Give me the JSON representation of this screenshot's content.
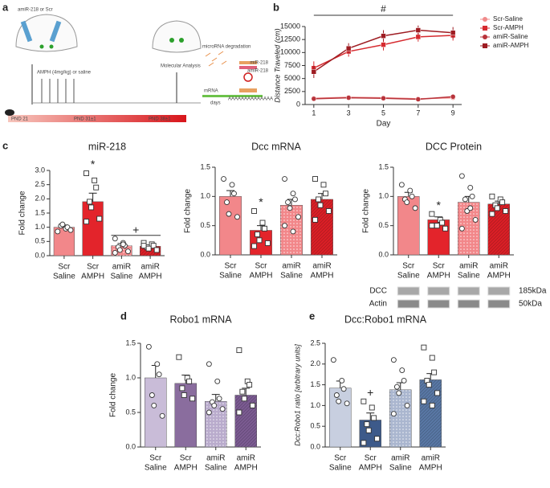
{
  "panel_labels": {
    "a": "a",
    "b": "b",
    "c": "c",
    "d": "d",
    "e": "e"
  },
  "diagram": {
    "injection": "amiR-218 or Scr",
    "treatment": "AMPH (4mg/kg) or saline",
    "analysis": "Molecular Analysis",
    "days": "days",
    "pnd": [
      "PND 21",
      "PND 31±1",
      "PND 38±1"
    ],
    "degradation": "microRNA degradation",
    "mir": "miR-218",
    "amir": "amiR-218",
    "mrna": "mRNA",
    "polya": "AAAAAAAAAAAAAA"
  },
  "chart_data": [
    {
      "type": "line",
      "xlabel": "Day",
      "ylabel": "Distance Traveled (cm)",
      "x": [
        1,
        3,
        5,
        7,
        9
      ],
      "xlim": [
        0.5,
        9.5
      ],
      "xticks": [
        1,
        3,
        5,
        7,
        9
      ],
      "ylim": [
        0,
        15000
      ],
      "yticks": [
        0,
        2500,
        5000,
        7500,
        10000,
        12500,
        15000
      ],
      "annotation": {
        "text": "#",
        "span": [
          1,
          9
        ]
      },
      "series": [
        {
          "name": "Scr-Saline",
          "color": "#f08a8a",
          "marker": "circle",
          "values": [
            1200,
            1400,
            1300,
            1100,
            1300
          ],
          "errors": [
            300,
            250,
            250,
            250,
            300
          ]
        },
        {
          "name": "Scr-AMPH",
          "color": "#d62a2f",
          "marker": "square",
          "values": [
            7000,
            10200,
            11500,
            13000,
            13300
          ],
          "errors": [
            1300,
            1000,
            1100,
            900,
            1000
          ]
        },
        {
          "name": "amiR-Saline",
          "color": "#b8333a",
          "marker": "circle",
          "values": [
            1100,
            1300,
            1200,
            1000,
            1500
          ],
          "errors": [
            250,
            250,
            250,
            250,
            350
          ]
        },
        {
          "name": "amiR-AMPH",
          "color": "#9e1c22",
          "marker": "square",
          "values": [
            6300,
            10800,
            13200,
            14300,
            13800
          ],
          "errors": [
            1200,
            1000,
            1100,
            900,
            1100
          ]
        }
      ]
    },
    {
      "type": "bar",
      "title": "miR-218",
      "ylabel": "Fold change",
      "categories": [
        [
          "Scr",
          "Saline"
        ],
        [
          "Scr",
          "AMPH"
        ],
        [
          "amiR",
          "Saline"
        ],
        [
          "amiR",
          "AMPH"
        ]
      ],
      "ylim": [
        0,
        3
      ],
      "yticks": [
        {
          "value": 0,
          "label": "0.0"
        },
        0.5,
        {
          "value": 1,
          "label": "1.0"
        },
        1.5,
        {
          "value": 2,
          "label": "2.0"
        },
        2.5,
        {
          "value": 3,
          "label": "3.0"
        }
      ],
      "colors": [
        "#f2878a",
        "#e3242b",
        "#f2878a",
        "#d81f26"
      ],
      "patterns": [
        null,
        null,
        "dots",
        "hatch"
      ],
      "markers": [
        "circle",
        "square",
        "circle",
        "square"
      ],
      "values": [
        1.0,
        1.9,
        0.35,
        0.33
      ],
      "errors": [
        0.08,
        0.3,
        0.08,
        0.05
      ],
      "points": [
        [
          0.85,
          0.95,
          1.0,
          1.05,
          1.1,
          0.9
        ],
        [
          2.9,
          2.65,
          2.4,
          1.9,
          1.7,
          1.3,
          1.2
        ],
        [
          0.6,
          0.45,
          0.35,
          0.3,
          0.2,
          0.15,
          0.1,
          0.4
        ],
        [
          0.45,
          0.4,
          0.35,
          0.3,
          0.25,
          0.2,
          0.35
        ]
      ],
      "annotations": [
        {
          "text": "*",
          "categories": [
            1
          ]
        },
        {
          "text": "+",
          "categories": [
            2,
            3
          ]
        }
      ]
    },
    {
      "type": "bar",
      "title": "Dcc mRNA",
      "ylabel": "Fold change",
      "categories": [
        [
          "Scr",
          "Saline"
        ],
        [
          "Scr",
          "AMPH"
        ],
        [
          "amiR",
          "Saline"
        ],
        [
          "amiR",
          "AMPH"
        ]
      ],
      "ylim": [
        0,
        1.5
      ],
      "yticks": [
        {
          "value": 0,
          "label": "0.0"
        },
        0.5,
        {
          "value": 1,
          "label": "1.0"
        },
        1.5
      ],
      "colors": [
        "#f2878a",
        "#e3242b",
        "#f2878a",
        "#d81f26"
      ],
      "patterns": [
        null,
        null,
        "dots",
        "hatch"
      ],
      "markers": [
        "circle",
        "square",
        "circle",
        "square"
      ],
      "values": [
        1.0,
        0.42,
        0.85,
        0.95
      ],
      "errors": [
        0.1,
        0.08,
        0.1,
        0.1
      ],
      "points": [
        [
          1.3,
          1.2,
          1.05,
          0.9,
          0.7,
          0.65
        ],
        [
          0.75,
          0.55,
          0.45,
          0.35,
          0.25,
          0.2,
          0.15
        ],
        [
          1.3,
          1.05,
          0.95,
          0.9,
          0.8,
          0.65,
          0.5,
          0.4
        ],
        [
          1.3,
          1.2,
          1.05,
          0.95,
          0.85,
          0.75,
          0.6
        ]
      ],
      "annotations": [
        {
          "text": "*",
          "categories": [
            1
          ]
        }
      ]
    },
    {
      "type": "bar",
      "title": "DCC Protein",
      "ylabel": "Fold change",
      "categories": [
        [
          "Scr",
          "Saline"
        ],
        [
          "Scr",
          "AMPH"
        ],
        [
          "amiR",
          "Saline"
        ],
        [
          "amiR",
          "AMPH"
        ]
      ],
      "ylim": [
        0,
        1.5
      ],
      "yticks": [
        {
          "value": 0,
          "label": "0.0"
        },
        0.5,
        {
          "value": 1,
          "label": "1.0"
        },
        1.5
      ],
      "colors": [
        "#f2878a",
        "#e3242b",
        "#f2878a",
        "#d81f26"
      ],
      "patterns": [
        null,
        null,
        "dots",
        "hatch"
      ],
      "markers": [
        "circle",
        "square",
        "circle",
        "square"
      ],
      "values": [
        1.0,
        0.6,
        0.9,
        0.87
      ],
      "errors": [
        0.07,
        0.05,
        0.1,
        0.05
      ],
      "points": [
        [
          1.2,
          1.1,
          1.0,
          0.95,
          0.9,
          0.8
        ],
        [
          0.7,
          0.6,
          0.55,
          0.5,
          0.5,
          0.45,
          0.5
        ],
        [
          1.35,
          1.15,
          1.0,
          0.95,
          0.75,
          0.6,
          0.45,
          0.8
        ],
        [
          1.0,
          0.95,
          0.9,
          0.85,
          0.8,
          0.75,
          0.7
        ]
      ],
      "annotations": [
        {
          "text": "*",
          "categories": [
            1
          ]
        }
      ],
      "blot": {
        "rows": [
          "DCC",
          "Actin"
        ],
        "sizes": [
          "185kDa",
          "50kDa"
        ]
      }
    },
    {
      "type": "bar",
      "title": "Robo1 mRNA",
      "ylabel": "Fold change",
      "categories": [
        [
          "Scr",
          "Saline"
        ],
        [
          "Scr",
          "AMPH"
        ],
        [
          "amiR",
          "Saline"
        ],
        [
          "amiR",
          "AMPH"
        ]
      ],
      "ylim": [
        0,
        1.5
      ],
      "yticks": [
        {
          "value": 0,
          "label": "0.0"
        },
        0.5,
        {
          "value": 1,
          "label": "1.0"
        },
        1.5
      ],
      "colors": [
        "#c9bcd8",
        "#8a6d9e",
        "#b9abcc",
        "#7a5a90"
      ],
      "patterns": [
        null,
        null,
        "dots",
        "hatch"
      ],
      "markers": [
        "circle",
        "square",
        "circle",
        "square"
      ],
      "values": [
        1.0,
        0.92,
        0.66,
        0.75
      ],
      "errors": [
        0.18,
        0.12,
        0.1,
        0.1
      ],
      "points": [
        [
          1.45,
          1.2,
          1.05,
          0.75,
          0.6,
          0.45
        ],
        [
          1.3,
          1.0,
          0.95,
          0.85,
          0.75,
          0.7
        ],
        [
          1.2,
          0.95,
          0.7,
          0.65,
          0.6,
          0.55,
          0.5
        ],
        [
          1.4,
          0.95,
          0.9,
          0.8,
          0.7,
          0.6,
          0.5
        ]
      ],
      "annotations": []
    },
    {
      "type": "bar",
      "title": "Dcc:Robo1 mRNA",
      "ylabel": "Dcc:Robo1 ratio [arbitrary units]",
      "categories": [
        [
          "Scr",
          "Saline"
        ],
        [
          "Scr",
          "AMPH"
        ],
        [
          "amiR",
          "Saline"
        ],
        [
          "amiR",
          "AMPH"
        ]
      ],
      "ylim": [
        0,
        2.5
      ],
      "yticks": [
        {
          "value": 0,
          "label": "0.0"
        },
        0.5,
        {
          "value": 1,
          "label": "1.0"
        },
        1.5,
        {
          "value": 2,
          "label": "2.0"
        },
        2.5
      ],
      "colors": [
        "#c8cfe0",
        "#3d5a8a",
        "#aab6cf",
        "#5876a3"
      ],
      "patterns": [
        null,
        null,
        "dots",
        "hatch"
      ],
      "markers": [
        "circle",
        "square",
        "circle",
        "square"
      ],
      "values": [
        1.42,
        0.65,
        1.38,
        1.62
      ],
      "errors": [
        0.17,
        0.17,
        0.17,
        0.15
      ],
      "points": [
        [
          2.1,
          1.6,
          1.4,
          1.25,
          1.1,
          1.05
        ],
        [
          1.1,
          0.95,
          0.7,
          0.55,
          0.4,
          0.2,
          0.1
        ],
        [
          2.1,
          1.85,
          1.6,
          1.45,
          1.3,
          1.0,
          0.8
        ],
        [
          2.4,
          2.15,
          1.8,
          1.6,
          1.5,
          1.3,
          1.1,
          1.0
        ]
      ],
      "annotations": [
        {
          "text": "+",
          "categories": [
            1
          ]
        }
      ]
    }
  ]
}
